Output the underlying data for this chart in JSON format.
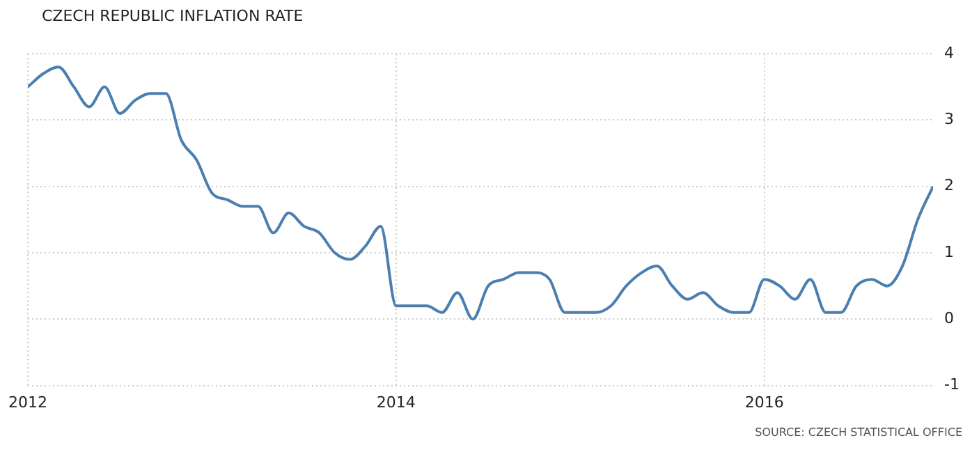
{
  "chart_data": {
    "type": "line",
    "title": "CZECH REPUBLIC INFLATION RATE",
    "annotations": [
      "SOURCE: CZECH STATISTICAL OFFICE"
    ],
    "x": [
      "2012-01",
      "2012-02",
      "2012-03",
      "2012-04",
      "2012-05",
      "2012-06",
      "2012-07",
      "2012-08",
      "2012-09",
      "2012-10",
      "2012-11",
      "2012-12",
      "2013-01",
      "2013-02",
      "2013-03",
      "2013-04",
      "2013-05",
      "2013-06",
      "2013-07",
      "2013-08",
      "2013-09",
      "2013-10",
      "2013-11",
      "2013-12",
      "2014-01",
      "2014-02",
      "2014-03",
      "2014-04",
      "2014-05",
      "2014-06",
      "2014-07",
      "2014-08",
      "2014-09",
      "2014-10",
      "2014-11",
      "2014-12",
      "2015-01",
      "2015-02",
      "2015-03",
      "2015-04",
      "2015-05",
      "2015-06",
      "2015-07",
      "2015-08",
      "2015-09",
      "2015-10",
      "2015-11",
      "2015-12",
      "2016-01",
      "2016-02",
      "2016-03",
      "2016-04",
      "2016-05",
      "2016-06",
      "2016-07",
      "2016-08",
      "2016-09",
      "2016-10",
      "2016-11",
      "2016-12"
    ],
    "series": [
      {
        "color": "#4a7fb0",
        "values": [
          3.5,
          3.7,
          3.8,
          3.5,
          3.2,
          3.5,
          3.1,
          3.3,
          3.4,
          3.4,
          2.7,
          2.4,
          1.9,
          1.8,
          1.7,
          1.7,
          1.3,
          1.6,
          1.4,
          1.3,
          1.0,
          0.9,
          1.1,
          1.4,
          0.2,
          0.2,
          0.2,
          0.1,
          0.4,
          0.0,
          0.5,
          0.6,
          0.7,
          0.7,
          0.6,
          0.1,
          0.1,
          0.1,
          0.2,
          0.5,
          0.7,
          0.8,
          0.5,
          0.3,
          0.4,
          0.2,
          0.1,
          0.1,
          0.6,
          0.5,
          0.3,
          0.6,
          0.1,
          0.1,
          0.5,
          0.6,
          0.5,
          0.8,
          1.5,
          2.0
        ]
      }
    ],
    "xlim": [
      "2012-01",
      "2016-12"
    ],
    "xticks": [
      "2012",
      "2014",
      "2016"
    ],
    "ylim": [
      -1,
      4
    ],
    "yticks": [
      -1,
      0,
      1,
      2,
      3,
      4
    ],
    "grid": true,
    "legend": false,
    "marker": "none",
    "line_style": "solid"
  }
}
